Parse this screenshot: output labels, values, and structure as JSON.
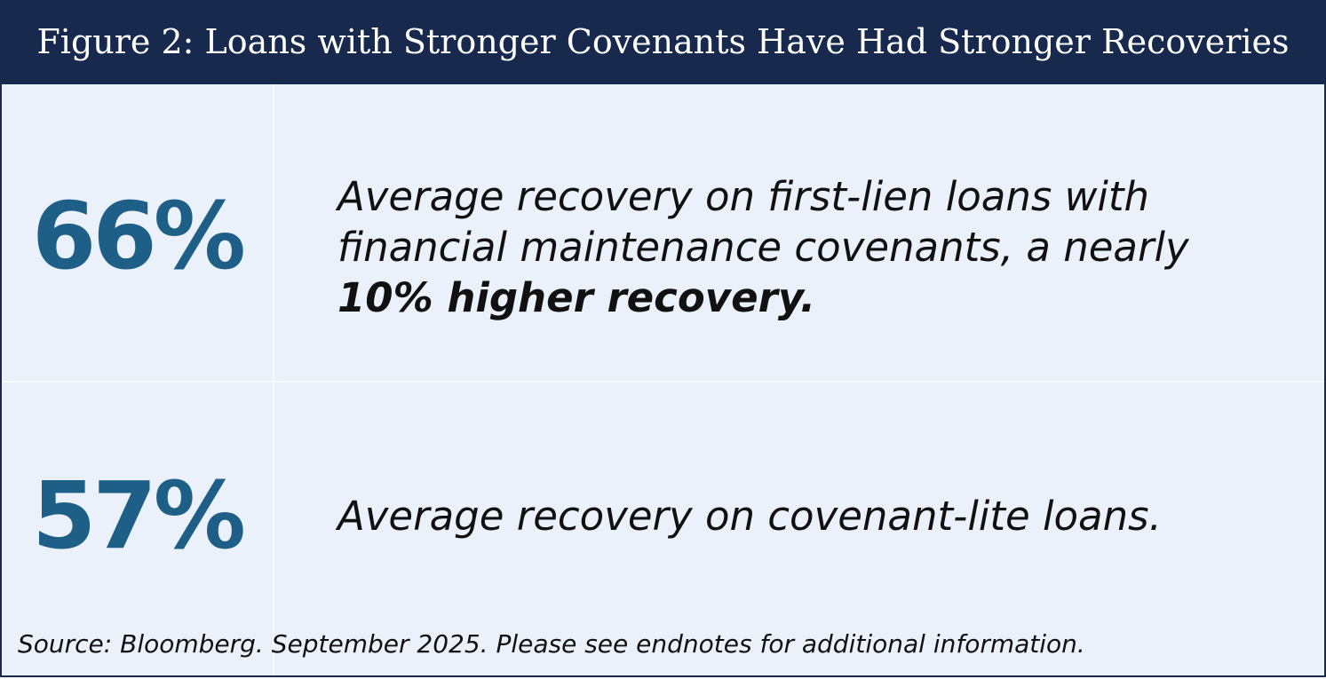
{
  "header": {
    "title": "Figure 2: Loans with Stronger Covenants Have Had Stronger Recoveries"
  },
  "rows": [
    {
      "stat": "66%",
      "description": "Average recovery on first-lien loans with financial maintenance covenants, a nearly",
      "emphasis": "10% higher recovery."
    },
    {
      "stat": "57%",
      "description": "Average recovery on covenant-lite loans."
    }
  ],
  "source": "Source: Bloomberg. September 2025. Please see endnotes for additional information."
}
